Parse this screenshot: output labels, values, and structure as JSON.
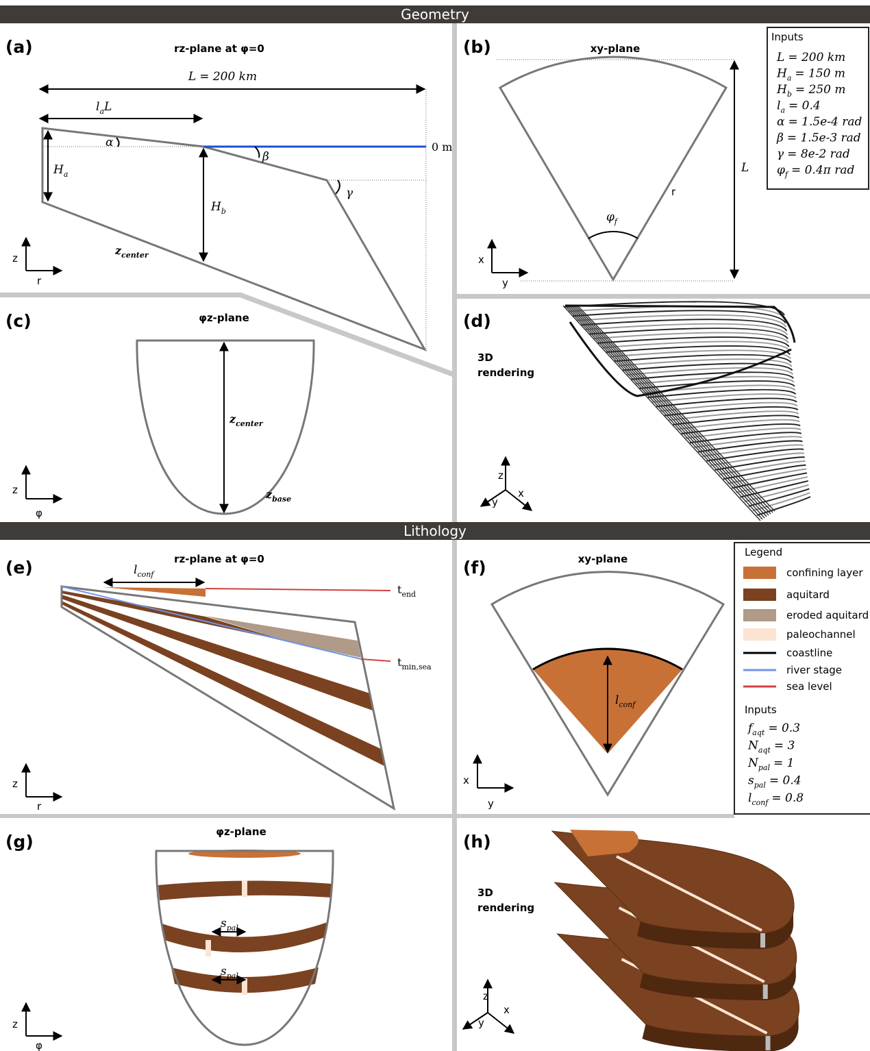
{
  "sections": {
    "geometry": "Geometry",
    "lithology": "Lithology"
  },
  "a": {
    "label": "(a)",
    "title": "rz-plane at φ=0",
    "L": {
      "sym": "L",
      "rest": "= 200 km"
    },
    "laL": {
      "sym": "l",
      "sub": "a",
      "rest": "L"
    },
    "alpha": {
      "sym": "α"
    },
    "beta": {
      "sym": "β"
    },
    "gamma": {
      "sym": "γ"
    },
    "Ha": {
      "sym": "H",
      "sub": "a"
    },
    "Hb": {
      "sym": "H",
      "sub": "b"
    },
    "sea": "0 m",
    "zc": {
      "sym": "z",
      "sub": "center"
    },
    "z": "z",
    "r": "r"
  },
  "b": {
    "label": "(b)",
    "title": "xy-plane",
    "phif": {
      "sym": "φ",
      "sub": "f"
    },
    "r": "r",
    "L": {
      "sym": "L"
    },
    "x": "x",
    "y": "y"
  },
  "inputs_geometry": {
    "title": "Inputs",
    "items": [
      {
        "sym": "L",
        "rest": "= 200 km"
      },
      {
        "sym": "H",
        "sub": "a",
        "rest": "= 150 m"
      },
      {
        "sym": "H",
        "sub": "b",
        "rest": "= 250 m"
      },
      {
        "sym": "l",
        "sub": "a",
        "rest": "= 0.4"
      },
      {
        "sym": "α",
        "rest": "= 1.5e-4 rad"
      },
      {
        "sym": "β",
        "rest": "= 1.5e-3 rad"
      },
      {
        "sym": "γ",
        "rest": "= 8e-2 rad"
      },
      {
        "sym": "φ",
        "sub": "f",
        "rest": "= 0.4π rad"
      }
    ]
  },
  "c": {
    "label": "(c)",
    "title": "φz-plane",
    "zc": {
      "sym": "z",
      "sub": "center"
    },
    "zb": {
      "sym": "z",
      "sub": "base"
    },
    "z": "z",
    "phi": "φ"
  },
  "d": {
    "label": "(d)",
    "title": [
      "3D",
      "rendering"
    ],
    "z": "z",
    "x": "x",
    "y": "y"
  },
  "e": {
    "label": "(e)",
    "title": "rz-plane at φ=0",
    "lconf": {
      "sym": "l",
      "sub": "conf"
    },
    "tend": {
      "sym": "t",
      "sub": "end"
    },
    "tmin": {
      "sym": "t",
      "sub": "min,sea"
    },
    "z": "z",
    "r": "r"
  },
  "f": {
    "label": "(f)",
    "title": "xy-plane",
    "lconf": {
      "sym": "l",
      "sub": "conf"
    },
    "x": "x",
    "y": "y"
  },
  "legend": {
    "title": "Legend",
    "items": [
      {
        "label": "confining layer",
        "color": "#c87137",
        "kind": "patch"
      },
      {
        "label": "aquitard",
        "color": "#7a4220",
        "kind": "patch"
      },
      {
        "label": "eroded aquitard",
        "color": "#b09a88",
        "kind": "patch"
      },
      {
        "label": "paleochannel",
        "color": "#fde3d2",
        "kind": "patch"
      },
      {
        "label": "coastline",
        "color": "#000000",
        "kind": "line"
      },
      {
        "label": "river stage",
        "color": "#6f93e6",
        "kind": "line"
      },
      {
        "label": "sea level",
        "color": "#d04040",
        "kind": "line"
      }
    ]
  },
  "inputs_lithology": {
    "title": "Inputs",
    "items": [
      {
        "sym": "f",
        "sub": "aqt",
        "rest": "= 0.3"
      },
      {
        "sym": "N",
        "sub": "aqt",
        "rest": "= 3"
      },
      {
        "sym": "N",
        "sub": "pal",
        "rest": "= 1"
      },
      {
        "sym": "s",
        "sub": "pal",
        "rest": "= 0.4"
      },
      {
        "sym": "l",
        "sub": "conf",
        "rest": "= 0.8"
      }
    ]
  },
  "g": {
    "label": "(g)",
    "title": "φz-plane",
    "spal": [
      {
        "sym": "s",
        "sub": "pal"
      },
      {
        "sym": "s",
        "sub": "pal"
      }
    ],
    "z": "z",
    "phi": "φ"
  },
  "h": {
    "label": "(h)",
    "title": [
      "3D",
      "rendering"
    ],
    "z": "z",
    "x": "x",
    "y": "y"
  }
}
